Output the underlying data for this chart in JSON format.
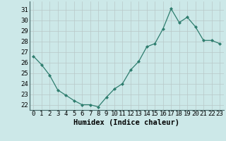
{
  "x": [
    0,
    1,
    2,
    3,
    4,
    5,
    6,
    7,
    8,
    9,
    10,
    11,
    12,
    13,
    14,
    15,
    16,
    17,
    18,
    19,
    20,
    21,
    22,
    23
  ],
  "y": [
    26.6,
    25.8,
    24.8,
    23.4,
    22.9,
    22.4,
    22.0,
    22.0,
    21.8,
    22.7,
    23.5,
    24.0,
    25.3,
    26.1,
    27.5,
    27.8,
    29.2,
    31.1,
    29.8,
    30.3,
    29.4,
    28.1,
    28.1,
    27.8
  ],
  "line_color": "#2e7d6e",
  "marker": "D",
  "marker_size": 2.0,
  "bg_color": "#cce8e8",
  "grid_color": "#b8c8c8",
  "xlabel": "Humidex (Indice chaleur)",
  "ylim": [
    21.5,
    31.8
  ],
  "yticks": [
    22,
    23,
    24,
    25,
    26,
    27,
    28,
    29,
    30,
    31
  ],
  "xticks": [
    0,
    1,
    2,
    3,
    4,
    5,
    6,
    7,
    8,
    9,
    10,
    11,
    12,
    13,
    14,
    15,
    16,
    17,
    18,
    19,
    20,
    21,
    22,
    23
  ],
  "tick_fontsize": 6.5,
  "label_fontsize": 7.5
}
